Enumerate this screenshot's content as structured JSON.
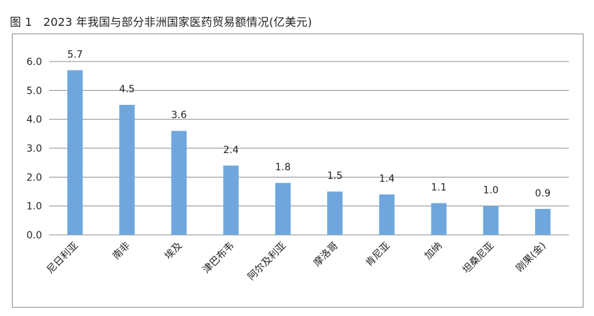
{
  "figure": {
    "number": "图 1",
    "title": "2023 年我国与部分非洲国家医药贸易额情况(亿美元)"
  },
  "chart_data": {
    "type": "bar",
    "title": "2023 年我国与部分非洲国家医药贸易额情况(亿美元)",
    "categories": [
      "尼日利亚",
      "南非",
      "埃及",
      "津巴布韦",
      "阿尔及利亚",
      "摩洛哥",
      "肯尼亚",
      "加纳",
      "坦桑尼亚",
      "刚果(金)"
    ],
    "values": [
      5.7,
      4.5,
      3.6,
      2.4,
      1.8,
      1.5,
      1.4,
      1.1,
      1.0,
      0.9
    ],
    "data_labels": [
      "5.7",
      "4.5",
      "3.6",
      "2.4",
      "1.8",
      "1.5",
      "1.4",
      "1.1",
      "1.0",
      "0.9"
    ],
    "y_ticks": [
      "0.0",
      "1.0",
      "2.0",
      "3.0",
      "4.0",
      "5.0",
      "6.0"
    ],
    "ylim": [
      0,
      6
    ],
    "grid": true,
    "legend": "none",
    "bar_color": "#6fa7dc",
    "grid_color": "#8c8c8c"
  }
}
